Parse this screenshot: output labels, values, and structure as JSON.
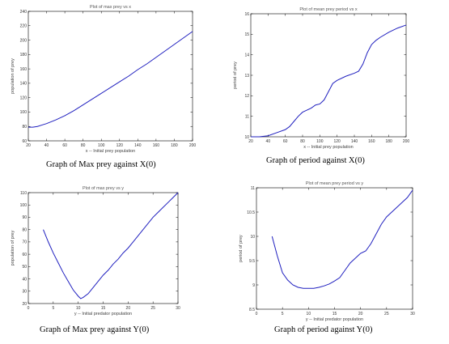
{
  "chart_data": [
    {
      "type": "line",
      "title": "Plot of max prey vs x",
      "xlabel": "x -- Initial prey population",
      "ylabel": "population of prey",
      "caption": "Graph of Max prey against X(0)",
      "xlim": [
        20,
        200
      ],
      "ylim": [
        60,
        240
      ],
      "xticks": [
        "20",
        "40",
        "60",
        "80",
        "100",
        "120",
        "140",
        "160",
        "180",
        "200"
      ],
      "yticks": [
        "60",
        "80",
        "100",
        "120",
        "140",
        "160",
        "180",
        "200",
        "220",
        "240"
      ],
      "grid": false,
      "color": "#1f1fbf",
      "series": [
        {
          "x": [
            20,
            25,
            30,
            35,
            40,
            50,
            60,
            70,
            80,
            90,
            100,
            110,
            120,
            130,
            140,
            150,
            160,
            170,
            180,
            190,
            200
          ],
          "y": [
            79,
            79,
            80,
            82,
            84,
            89,
            95,
            102,
            110,
            118,
            126,
            134,
            142,
            150,
            159,
            167,
            176,
            185,
            194,
            203,
            212
          ]
        }
      ]
    },
    {
      "type": "line",
      "title": "Plot of mean prey period vs x",
      "xlabel": "x -- Initial prey population",
      "ylabel": "period of prey",
      "caption": "Graph of period against X(0)",
      "xlim": [
        20,
        200
      ],
      "ylim": [
        10,
        16
      ],
      "xticks": [
        "20",
        "40",
        "60",
        "80",
        "100",
        "120",
        "140",
        "160",
        "180",
        "200"
      ],
      "yticks": [
        "10",
        "11",
        "12",
        "13",
        "14",
        "15",
        "16"
      ],
      "grid": false,
      "color": "#1f1fbf",
      "series": [
        {
          "x": [
            20,
            30,
            40,
            50,
            60,
            65,
            70,
            75,
            80,
            85,
            90,
            95,
            100,
            105,
            110,
            115,
            120,
            130,
            140,
            145,
            150,
            155,
            160,
            165,
            170,
            180,
            190,
            200
          ],
          "y": [
            10.0,
            10.0,
            10.05,
            10.2,
            10.35,
            10.5,
            10.75,
            11.0,
            11.2,
            11.3,
            11.4,
            11.55,
            11.6,
            11.8,
            12.2,
            12.6,
            12.75,
            12.95,
            13.1,
            13.2,
            13.55,
            14.1,
            14.5,
            14.7,
            14.85,
            15.1,
            15.3,
            15.45
          ]
        }
      ]
    },
    {
      "type": "line",
      "title": "Plot of max prey vs y",
      "xlabel": "y -- Initial predator population",
      "ylabel": "population of prey",
      "caption": "Graph of Max prey against Y(0)",
      "xlim": [
        0,
        30
      ],
      "ylim": [
        20,
        110
      ],
      "xticks": [
        "0",
        "5",
        "10",
        "15",
        "20",
        "25",
        "30"
      ],
      "yticks": [
        "20",
        "30",
        "40",
        "50",
        "60",
        "70",
        "80",
        "90",
        "100",
        "110"
      ],
      "grid": false,
      "color": "#1f1fbf",
      "series": [
        {
          "x": [
            3,
            4,
            5,
            6,
            7,
            8,
            9,
            10,
            10.5,
            11,
            12,
            13,
            14,
            15,
            16,
            17,
            18,
            19,
            20,
            21,
            22,
            23,
            24,
            25,
            26,
            27,
            28,
            29,
            30
          ],
          "y": [
            80,
            70,
            61,
            53,
            45,
            38,
            31,
            26,
            24,
            25,
            28,
            33,
            38,
            43,
            47,
            52,
            56,
            61,
            65,
            70,
            75,
            80,
            85,
            90,
            94,
            98,
            102,
            106,
            110
          ]
        }
      ]
    },
    {
      "type": "line",
      "title": "Plot of mean prey period vs y",
      "xlabel": "y -- Initial predator population",
      "ylabel": "period of prey",
      "caption": "Graph of period against Y(0)",
      "xlim": [
        0,
        30
      ],
      "ylim": [
        8.5,
        11
      ],
      "xticks": [
        "0",
        "5",
        "10",
        "15",
        "20",
        "25",
        "30"
      ],
      "yticks": [
        "8.5",
        "9",
        "9.5",
        "10",
        "10.5",
        "11"
      ],
      "grid": false,
      "color": "#1f1fbf",
      "series": [
        {
          "x": [
            3,
            4,
            5,
            6,
            7,
            8,
            9,
            10,
            11,
            12,
            13,
            14,
            15,
            16,
            17,
            18,
            19,
            20,
            21,
            22,
            23,
            24,
            25,
            26,
            27,
            28,
            29,
            30
          ],
          "y": [
            10.0,
            9.6,
            9.25,
            9.1,
            9.0,
            8.95,
            8.93,
            8.93,
            8.93,
            8.95,
            8.98,
            9.02,
            9.08,
            9.15,
            9.3,
            9.45,
            9.55,
            9.65,
            9.7,
            9.85,
            10.05,
            10.25,
            10.4,
            10.5,
            10.6,
            10.7,
            10.8,
            10.95
          ]
        }
      ]
    }
  ]
}
